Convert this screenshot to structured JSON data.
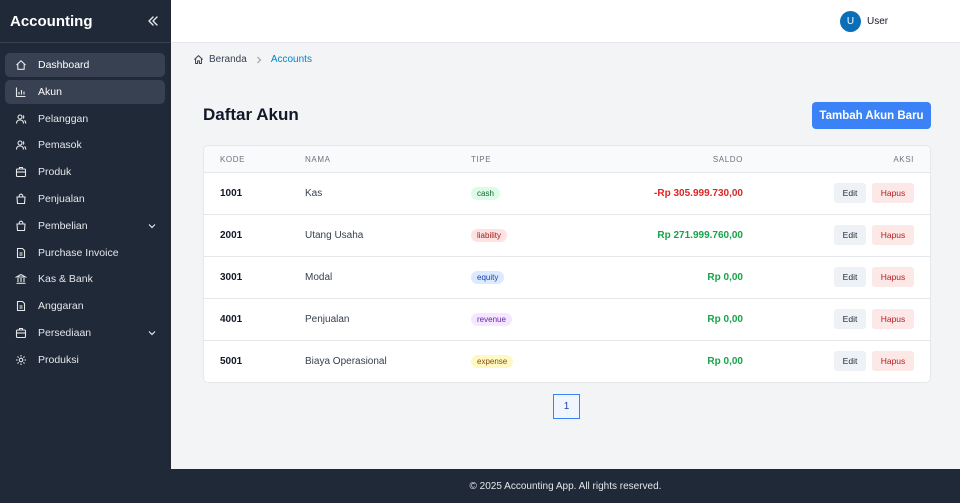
{
  "sidebar": {
    "brand": "Accounting",
    "items": [
      {
        "label": "Dashboard",
        "icon": "home-icon",
        "active": true
      },
      {
        "label": "Akun",
        "icon": "chart-icon",
        "active": true
      },
      {
        "label": "Pelanggan",
        "icon": "users-icon"
      },
      {
        "label": "Pemasok",
        "icon": "users-icon"
      },
      {
        "label": "Produk",
        "icon": "box-icon"
      },
      {
        "label": "Penjualan",
        "icon": "bag-icon"
      },
      {
        "label": "Pembelian",
        "icon": "bag-icon",
        "expandable": true
      },
      {
        "label": "Purchase Invoice",
        "icon": "document-icon"
      },
      {
        "label": "Kas & Bank",
        "icon": "bank-icon"
      },
      {
        "label": "Anggaran",
        "icon": "document-icon"
      },
      {
        "label": "Persediaan",
        "icon": "box-icon",
        "expandable": true
      },
      {
        "label": "Produksi",
        "icon": "gear-icon"
      }
    ]
  },
  "header": {
    "avatar_initial": "U",
    "user_name": "User"
  },
  "breadcrumb": {
    "home": "Beranda",
    "current": "Accounts"
  },
  "main": {
    "title": "Daftar Akun",
    "add_button": "Tambah Akun Baru"
  },
  "table": {
    "columns": {
      "kode": "KODE",
      "nama": "NAMA",
      "tipe": "TIPE",
      "saldo": "SALDO",
      "aksi": "AKSI"
    },
    "rows": [
      {
        "kode": "1001",
        "nama": "Kas",
        "tipe": "cash",
        "saldo": "-Rp 305.999.730,00",
        "negative": true
      },
      {
        "kode": "2001",
        "nama": "Utang Usaha",
        "tipe": "liability",
        "saldo": "Rp 271.999.760,00",
        "negative": false
      },
      {
        "kode": "3001",
        "nama": "Modal",
        "tipe": "equity",
        "saldo": "Rp 0,00",
        "negative": false
      },
      {
        "kode": "4001",
        "nama": "Penjualan",
        "tipe": "revenue",
        "saldo": "Rp 0,00",
        "negative": false
      },
      {
        "kode": "5001",
        "nama": "Biaya Operasional",
        "tipe": "expense",
        "saldo": "Rp 0,00",
        "negative": false
      }
    ],
    "edit_label": "Edit",
    "delete_label": "Hapus"
  },
  "badge_colors": {
    "cash": {
      "bg": "#dcfce7",
      "fg": "#166534"
    },
    "liability": {
      "bg": "#fee2e2",
      "fg": "#991b1b"
    },
    "equity": {
      "bg": "#dbeafe",
      "fg": "#1e40af"
    },
    "revenue": {
      "bg": "#f3e8ff",
      "fg": "#6b21a8"
    },
    "expense": {
      "bg": "#fef9c3",
      "fg": "#854d0e"
    }
  },
  "pagination": {
    "current": "1"
  },
  "footer": {
    "text": "© 2025 Accounting App. All rights reserved."
  }
}
